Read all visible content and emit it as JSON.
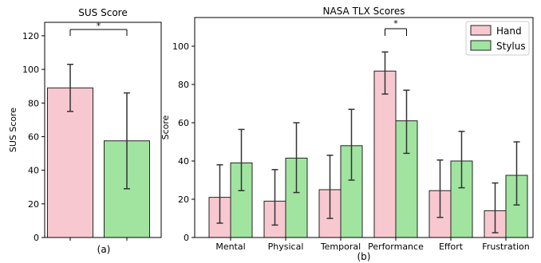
{
  "colors": {
    "hand": "#f8c8d0",
    "stylus": "#a0e4a0",
    "edge": "#222222",
    "error": "#333333"
  },
  "chart_data": [
    {
      "type": "bar",
      "title": "SUS Score",
      "ylabel": "SUS Score",
      "xlabel": "(a)",
      "ylim": [
        0,
        128
      ],
      "yticks": [
        0,
        20,
        40,
        60,
        80,
        100,
        120
      ],
      "series": [
        {
          "values": [
            89
          ],
          "error_low": [
            75
          ],
          "error_high": [
            103
          ],
          "color_key": "hand"
        },
        {
          "values": [
            57.5
          ],
          "error_low": [
            29
          ],
          "error_high": [
            86
          ],
          "color_key": "stylus"
        }
      ],
      "significance": [
        {
          "label": "*",
          "between": [
            0,
            1
          ]
        }
      ]
    },
    {
      "type": "bar",
      "title": "NASA TLX Scores",
      "ylabel": "Score",
      "xlabel": "(b)",
      "ylim": [
        0,
        115
      ],
      "yticks": [
        0,
        20,
        40,
        60,
        80,
        100
      ],
      "categories": [
        "Mental",
        "Physical",
        "Temporal",
        "Performance",
        "Effort",
        "Frustration"
      ],
      "legend": {
        "position": "top-right"
      },
      "series": [
        {
          "name": "Hand",
          "color_key": "hand",
          "values": [
            21,
            19,
            25,
            87,
            24.5,
            14
          ],
          "error_low": [
            7.5,
            6.5,
            10,
            75,
            10.5,
            2.5
          ],
          "error_high": [
            38,
            35.5,
            43,
            97,
            40.5,
            28.5
          ]
        },
        {
          "name": "Stylus",
          "color_key": "stylus",
          "values": [
            39,
            41.5,
            48,
            61,
            40,
            32.5
          ],
          "error_low": [
            24.5,
            23.5,
            30,
            44,
            26,
            17
          ],
          "error_high": [
            56.5,
            60,
            67,
            77,
            55.5,
            50
          ]
        }
      ],
      "significance": [
        {
          "label": "*",
          "category_index": 3
        }
      ]
    }
  ]
}
